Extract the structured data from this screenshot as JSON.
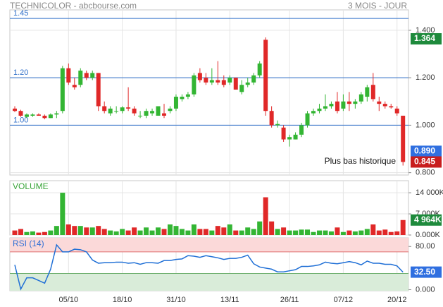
{
  "header": {
    "title": "TECHNICOLOR - abcbourse.com",
    "period": "3 MOIS - JOUR"
  },
  "chart_data": [
    {
      "type": "candlestick",
      "open": [
        1.07,
        1.06,
        1.035,
        1.04,
        1.045,
        1.04,
        1.03,
        1.045,
        1.06,
        1.24,
        1.17,
        1.17,
        1.22,
        1.2,
        1.22,
        1.08,
        1.05,
        1.06,
        1.06,
        1.075,
        1.07,
        1.04,
        1.04,
        1.05,
        1.04,
        1.05,
        1.06,
        1.07,
        1.11,
        1.12,
        1.13,
        1.22,
        1.2,
        1.18,
        1.19,
        1.19,
        1.18,
        1.2,
        1.14,
        1.17,
        1.18,
        1.21,
        1.36,
        1.06,
        1.0,
        0.99,
        0.94,
        0.94,
        0.96,
        1.0,
        1.05,
        1.06,
        1.07,
        1.08,
        1.1,
        1.07,
        1.1,
        1.09,
        1.1,
        1.12,
        1.17,
        1.1,
        1.09,
        1.08,
        1.07,
        1.04
      ],
      "high": [
        1.08,
        1.065,
        1.05,
        1.05,
        1.05,
        1.045,
        1.05,
        1.06,
        1.25,
        1.26,
        1.2,
        1.24,
        1.23,
        1.23,
        1.22,
        1.1,
        1.08,
        1.08,
        1.08,
        1.16,
        1.08,
        1.06,
        1.07,
        1.07,
        1.08,
        1.09,
        1.08,
        1.13,
        1.13,
        1.14,
        1.22,
        1.24,
        1.22,
        1.24,
        1.27,
        1.21,
        1.21,
        1.2,
        1.19,
        1.2,
        1.22,
        1.27,
        1.37,
        1.08,
        1.02,
        1.0,
        0.96,
        0.97,
        1.01,
        1.06,
        1.07,
        1.09,
        1.13,
        1.1,
        1.14,
        1.13,
        1.14,
        1.11,
        1.14,
        1.17,
        1.22,
        1.12,
        1.1,
        1.09,
        1.08,
        1.04
      ],
      "low": [
        1.055,
        1.035,
        1.03,
        1.035,
        1.04,
        1.025,
        1.03,
        1.03,
        1.05,
        1.17,
        1.15,
        1.16,
        1.19,
        1.19,
        1.06,
        1.05,
        1.04,
        1.05,
        1.05,
        1.06,
        1.04,
        1.03,
        1.03,
        1.04,
        1.04,
        1.03,
        1.05,
        1.06,
        1.1,
        1.11,
        1.12,
        1.18,
        1.17,
        1.17,
        1.17,
        1.16,
        1.17,
        1.15,
        1.13,
        1.16,
        1.17,
        1.2,
        1.04,
        0.99,
        0.99,
        0.93,
        0.91,
        0.94,
        0.95,
        0.99,
        1.04,
        1.05,
        1.06,
        1.07,
        1.05,
        1.06,
        1.06,
        1.07,
        1.09,
        1.1,
        1.1,
        1.06,
        1.07,
        1.07,
        1.04,
        0.83
      ],
      "close": [
        1.06,
        1.04,
        1.045,
        1.045,
        1.04,
        1.03,
        1.045,
        1.05,
        1.24,
        1.18,
        1.16,
        1.23,
        1.2,
        1.22,
        1.08,
        1.06,
        1.07,
        1.06,
        1.075,
        1.07,
        1.05,
        1.04,
        1.06,
        1.06,
        1.08,
        1.04,
        1.07,
        1.12,
        1.12,
        1.13,
        1.21,
        1.19,
        1.18,
        1.19,
        1.18,
        1.17,
        1.2,
        1.15,
        1.17,
        1.18,
        1.21,
        1.26,
        1.06,
        1.0,
        1.005,
        0.94,
        0.95,
        0.96,
        1.0,
        1.05,
        1.06,
        1.07,
        1.08,
        1.09,
        1.06,
        1.1,
        1.09,
        1.1,
        1.13,
        1.16,
        1.11,
        1.09,
        1.08,
        1.075,
        1.05,
        0.845
      ],
      "up_color": "#33b533",
      "down_color": "#e02828",
      "ylim": [
        0.79,
        1.486
      ],
      "yticks": [
        {
          "value": 1.4,
          "label": "1.400"
        },
        {
          "value": 1.2,
          "label": "1.200"
        },
        {
          "value": 1.0,
          "label": "1.000"
        },
        {
          "value": 0.8,
          "label": "0.800"
        }
      ],
      "hlines": [
        {
          "value": 1.45,
          "label": "1.45"
        },
        {
          "value": 1.2,
          "label": "1.20"
        },
        {
          "value": 1.0,
          "label": "1.00"
        }
      ],
      "hline_color": "#2f6fc9",
      "badges": [
        {
          "value": 1.364,
          "label": "1.364",
          "color": "#1e8a3c"
        },
        {
          "value": 0.89,
          "label": "0.890",
          "color": "#2f6fe0"
        },
        {
          "value": 0.845,
          "label": "0.845",
          "color": "#c81e1e"
        }
      ],
      "annotation": "Plus bas historique"
    },
    {
      "type": "bar",
      "title": "VOLUME",
      "values": [
        1500,
        2000,
        1000,
        1200,
        800,
        1000,
        1500,
        3000,
        14000,
        3500,
        3000,
        3000,
        2500,
        2500,
        3000,
        2000,
        1500,
        1200,
        2000,
        1500,
        2500,
        1500,
        2500,
        1500,
        2500,
        2000,
        3500,
        3000,
        2000,
        1500,
        3500,
        2000,
        2000,
        1500,
        3000,
        2500,
        3500,
        1500,
        1500,
        2500,
        2000,
        4500,
        12500,
        4500,
        2000,
        2500,
        1500,
        1500,
        1800,
        1800,
        1000,
        1500,
        1500,
        1200,
        2500,
        1000,
        1500,
        1200,
        1500,
        2000,
        3500,
        1500,
        1800,
        1000,
        1200,
        4964
      ],
      "ylim": [
        0,
        18000
      ],
      "yticks": [
        {
          "value": 14000,
          "label": "14 000K"
        },
        {
          "value": 7000,
          "label": "7 000K"
        },
        {
          "value": 0,
          "label": "0.000K"
        }
      ],
      "badges": [
        {
          "value": 4964,
          "label": "4 964K",
          "color": "#1e8a3c"
        }
      ]
    },
    {
      "type": "line",
      "title": "RSI (14)",
      "color": "#1f6fd6",
      "categories": [
        null,
        null,
        null,
        null,
        null,
        null,
        null,
        null,
        null,
        "05/10",
        null,
        null,
        null,
        null,
        null,
        null,
        null,
        null,
        "18/10",
        null,
        null,
        null,
        null,
        null,
        null,
        null,
        null,
        "31/10",
        null,
        null,
        null,
        null,
        null,
        null,
        null,
        null,
        "13/11",
        null,
        null,
        null,
        null,
        null,
        null,
        null,
        null,
        null,
        "26/11",
        null,
        null,
        null,
        null,
        null,
        null,
        null,
        null,
        "07/12",
        null,
        null,
        null,
        null,
        null,
        null,
        null,
        null,
        "20/12",
        null
      ],
      "values": [
        46,
        1,
        22,
        22,
        17,
        12,
        38,
        83,
        70,
        70,
        75,
        74,
        70,
        55,
        49,
        50,
        50,
        51,
        51,
        49,
        50,
        47,
        50,
        50,
        49,
        54,
        54,
        56,
        57,
        63,
        62,
        60,
        63,
        61,
        59,
        56,
        58,
        58,
        60,
        64,
        48,
        42,
        40,
        38,
        33,
        33,
        35,
        37,
        43,
        43,
        44,
        46,
        51,
        49,
        48,
        50,
        52,
        50,
        46,
        53,
        49,
        49,
        47,
        47,
        44,
        32.5
      ],
      "ylim": [
        -2,
        96
      ],
      "yticks": [
        {
          "value": 80,
          "label": "80.00"
        },
        {
          "value": 0,
          "label": "0.000"
        }
      ],
      "overbought": 70,
      "oversold": 30,
      "badges": [
        {
          "value": 32.5,
          "label": "32.50",
          "color": "#2f6fe0"
        }
      ]
    }
  ]
}
